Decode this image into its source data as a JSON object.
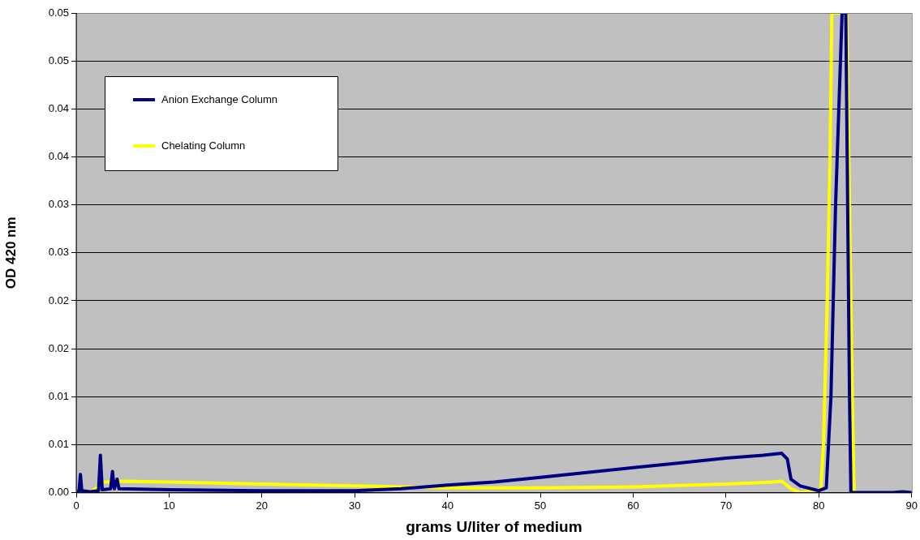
{
  "chart_data": {
    "type": "line",
    "xlabel": "grams U/liter of medium",
    "ylabel": "OD 420 nm",
    "xlim": [
      0,
      90
    ],
    "xticks": [
      0,
      10,
      20,
      30,
      40,
      50,
      60,
      70,
      80,
      90
    ],
    "ylim": [
      0,
      0.05
    ],
    "yticks": [
      {
        "value": 0,
        "label": "0.00"
      },
      {
        "value": 0.005,
        "label": "0.01"
      },
      {
        "value": 0.01,
        "label": "0.01"
      },
      {
        "value": 0.015,
        "label": "0.02"
      },
      {
        "value": 0.02,
        "label": "0.02"
      },
      {
        "value": 0.025,
        "label": "0.03"
      },
      {
        "value": 0.03,
        "label": "0.03"
      },
      {
        "value": 0.035,
        "label": "0.04"
      },
      {
        "value": 0.04,
        "label": "0.04"
      },
      {
        "value": 0.045,
        "label": "0.05"
      },
      {
        "value": 0.05,
        "label": "0.05"
      }
    ],
    "grid": "y",
    "legend": "top left",
    "marker": "none",
    "line_style": "solid",
    "series": [
      {
        "name": "Anion Exchange Column",
        "color": "#000080",
        "x": [
          0,
          0.3,
          0.45,
          0.6,
          1.5,
          2.4,
          2.6,
          2.8,
          3.7,
          3.9,
          4.1,
          4.4,
          4.6,
          10,
          20,
          30,
          35,
          40,
          45,
          50,
          55,
          60,
          65,
          70,
          74,
          76,
          76.6,
          77,
          78,
          80,
          80.8,
          81.3,
          81.8,
          82.5,
          82.9,
          83.1,
          83.3,
          83.45,
          88,
          89,
          90
        ],
        "values": [
          0,
          0.0002,
          0.0019,
          0.0002,
          0.0001,
          0.0002,
          0.0039,
          0.0003,
          0.0004,
          0.0022,
          0.0004,
          0.0014,
          0.0004,
          0.0003,
          0.0002,
          0.0002,
          0.0004,
          0.0008,
          0.0011,
          0.0016,
          0.0021,
          0.0026,
          0.0031,
          0.0036,
          0.0039,
          0.0041,
          0.0035,
          0.0014,
          0.0007,
          0.0002,
          0.0005,
          0.01,
          0.03,
          0.05,
          0.05,
          0.03,
          0.01,
          0,
          0,
          0.0001,
          0
        ]
      },
      {
        "name": "Chelating Column",
        "color": "#ffff00",
        "x": [
          0,
          1.5,
          2.2,
          3,
          5,
          10,
          20,
          30,
          40,
          50,
          60,
          70,
          75,
          76,
          77,
          78,
          80.2,
          80.5,
          80.9,
          81.2,
          81.4,
          83.0,
          83.3,
          83.6,
          83.8
        ],
        "values": [
          0.0001,
          0.0001,
          0.0005,
          0.0011,
          0.0012,
          0.0011,
          0.0009,
          0.0007,
          0.0005,
          0.0005,
          0.0006,
          0.0009,
          0.0011,
          0.0012,
          0.0004,
          0,
          0.0003,
          0.005,
          0.02,
          0.035,
          0.05,
          0.05,
          0.03,
          0.01,
          0
        ]
      }
    ]
  }
}
